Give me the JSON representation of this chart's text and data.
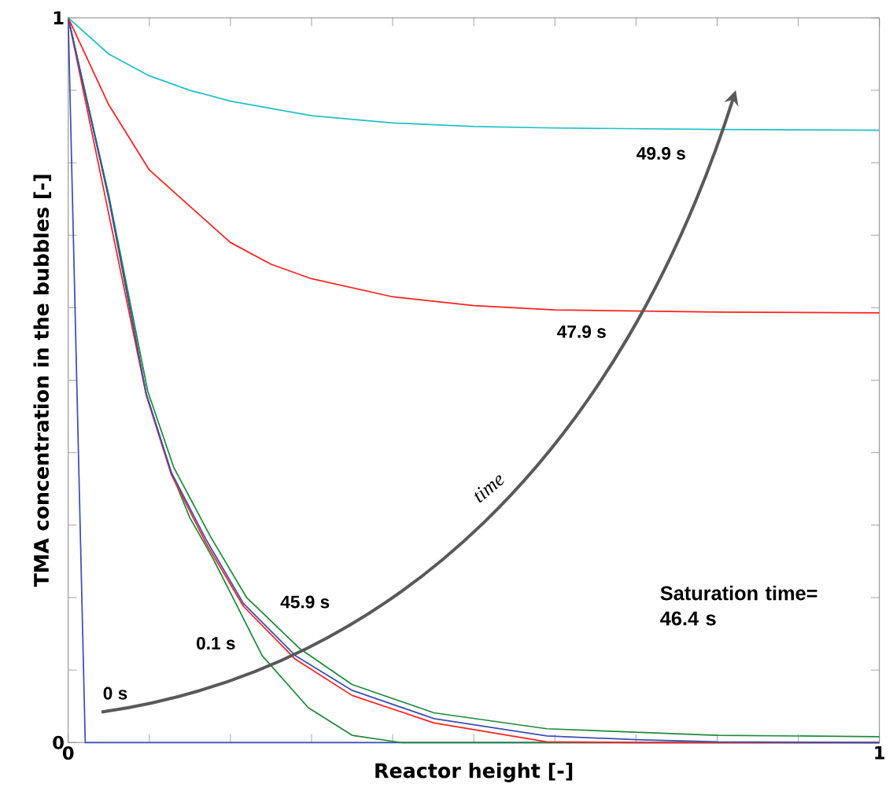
{
  "chart_data": {
    "type": "line",
    "xlabel": "Reactor height [-]",
    "ylabel": "TMA concentration in the bubbles [-]",
    "xlim": [
      0,
      1
    ],
    "ylim": [
      0,
      1
    ],
    "xticks": [
      0,
      {
        "value": 0.1,
        "label": null
      },
      {
        "value": 0.2,
        "label": null
      },
      {
        "value": 0.3,
        "label": null
      },
      {
        "value": 0.4,
        "label": null
      },
      {
        "value": 0.5,
        "label": null
      },
      {
        "value": 0.6,
        "label": null
      },
      {
        "value": 0.7,
        "label": null
      },
      {
        "value": 0.8,
        "label": null
      },
      {
        "value": 0.9,
        "label": null
      },
      1
    ],
    "yticks": [
      0,
      {
        "value": 0.1,
        "label": null
      },
      {
        "value": 0.2,
        "label": null
      },
      {
        "value": 0.3,
        "label": null
      },
      {
        "value": 0.4,
        "label": null
      },
      {
        "value": 0.5,
        "label": null
      },
      {
        "value": 0.6,
        "label": null
      },
      {
        "value": 0.7,
        "label": null
      },
      {
        "value": 0.8,
        "label": null
      },
      {
        "value": 0.9,
        "label": null
      },
      1
    ],
    "grid": false,
    "legend": false,
    "marker": "none",
    "line_style": "solid",
    "annotations": [
      "Saturation time= 46.4 s",
      "time"
    ],
    "series": [
      {
        "name": "0 s",
        "color": "#3b4fb5",
        "x": [
          0,
          0.021,
          1
        ],
        "values": [
          1,
          0,
          0
        ]
      },
      {
        "name": "0.1 s",
        "color": "#1e8a3a",
        "x": [
          0,
          0.05,
          0.096,
          0.127,
          0.15,
          0.178,
          0.203,
          0.239,
          0.296,
          0.35,
          0.41,
          1
        ],
        "values": [
          1,
          0.753,
          0.482,
          0.373,
          0.31,
          0.255,
          0.2,
          0.12,
          0.048,
          0.01,
          0,
          0
        ]
      },
      {
        "color": "#1e8a3a",
        "x": [
          0,
          0.05,
          0.098,
          0.13,
          0.175,
          0.22,
          0.285,
          0.35,
          0.451,
          0.59,
          0.8,
          1
        ],
        "values": [
          1,
          0.755,
          0.485,
          0.38,
          0.285,
          0.2,
          0.13,
          0.08,
          0.041,
          0.019,
          0.01,
          0.008
        ]
      },
      {
        "color": "#ff2020",
        "x": [
          0,
          0.05,
          0.096,
          0.127,
          0.17,
          0.216,
          0.28,
          0.35,
          0.451,
          0.59,
          0.7,
          1
        ],
        "values": [
          1,
          null,
          0.48,
          0.37,
          0.275,
          0.188,
          0.115,
          0.065,
          0.027,
          0.001,
          0,
          0
        ]
      },
      {
        "name": "45.9 s",
        "color": "#3b4fb5",
        "x": [
          0,
          0.05,
          0.096,
          0.127,
          0.17,
          0.216,
          0.28,
          0.35,
          0.451,
          0.59,
          0.7,
          0.8,
          1
        ],
        "values": [
          1,
          0.75,
          0.482,
          0.373,
          0.28,
          0.192,
          0.12,
          0.072,
          0.033,
          0.009,
          0.004,
          0.001,
          0
        ]
      },
      {
        "name": "47.9 s",
        "color": "#ff2020",
        "x": [
          0,
          0.05,
          0.1,
          0.15,
          0.2,
          0.25,
          0.3,
          0.4,
          0.5,
          0.6,
          0.8,
          1
        ],
        "values": [
          1,
          0.88,
          0.79,
          0.74,
          0.69,
          0.66,
          0.64,
          0.615,
          0.603,
          0.597,
          0.594,
          0.593
        ]
      },
      {
        "name": "49.9 s",
        "color": "#20c0c8",
        "x": [
          0,
          0.05,
          0.1,
          0.15,
          0.2,
          0.3,
          0.4,
          0.5,
          0.6,
          0.8,
          1
        ],
        "values": [
          1,
          0.95,
          0.92,
          0.9,
          0.885,
          0.865,
          0.855,
          0.85,
          0.848,
          0.846,
          0.845
        ]
      }
    ]
  }
}
